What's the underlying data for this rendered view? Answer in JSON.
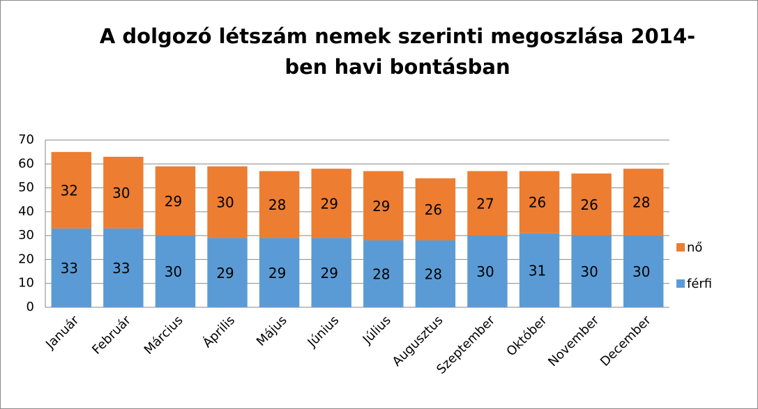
{
  "chart_data": {
    "type": "bar",
    "stacked": true,
    "title": "A dolgozó létszám nemek szerinti megoszlása 2014-ben havi bontásban",
    "categories": [
      "Január",
      "Február",
      "Március",
      "Április",
      "Május",
      "Június",
      "Július",
      "Augusztus",
      "Szeptember",
      "Október",
      "November",
      "December"
    ],
    "series": [
      {
        "name": "férfi",
        "color": "#5b9bd5",
        "values": [
          33,
          33,
          30,
          29,
          29,
          29,
          28,
          28,
          30,
          31,
          30,
          30
        ]
      },
      {
        "name": "nő",
        "color": "#ed7d31",
        "values": [
          32,
          30,
          29,
          30,
          28,
          29,
          29,
          26,
          27,
          26,
          26,
          28
        ]
      }
    ],
    "ylim": [
      0,
      70
    ],
    "yticks": [
      0,
      10,
      20,
      30,
      40,
      50,
      60,
      70
    ],
    "grid": true,
    "legend": "right"
  }
}
